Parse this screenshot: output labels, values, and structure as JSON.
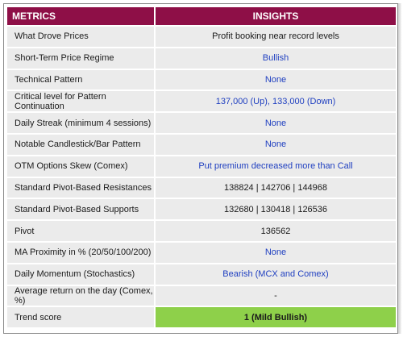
{
  "header": {
    "metrics_label": "METRICS",
    "insights_label": "INSIGHTS"
  },
  "rows": [
    {
      "metric": "What Drove Prices",
      "value": "Profit booking near record levels",
      "value_color": "black"
    },
    {
      "metric": "Short-Term Price Regime",
      "value": "Bullish",
      "value_color": "blue"
    },
    {
      "metric": "Technical Pattern",
      "value": "None",
      "value_color": "blue"
    },
    {
      "metric": "Critical level for Pattern Continuation",
      "value": "137,000 (Up), 133,000 (Down)",
      "value_color": "blue"
    },
    {
      "metric": "Daily Streak (minimum 4 sessions)",
      "value": "None",
      "value_color": "blue"
    },
    {
      "metric": "Notable Candlestick/Bar Pattern",
      "value": "None",
      "value_color": "blue"
    },
    {
      "metric": "OTM Options Skew (Comex)",
      "value": "Put premium decreased more than Call",
      "value_color": "blue"
    },
    {
      "metric": "Standard Pivot-Based Resistances",
      "value": "138824 | 142706  | 144968",
      "value_color": "black"
    },
    {
      "metric": "Standard Pivot-Based Supports",
      "value": "132680 | 130418  | 126536",
      "value_color": "black"
    },
    {
      "metric": "Pivot",
      "value": "136562",
      "value_color": "black"
    },
    {
      "metric": "MA Proximity in % (20/50/100/200)",
      "value": "None",
      "value_color": "blue"
    },
    {
      "metric": "Daily Momentum (Stochastics)",
      "value": "Bearish (MCX and Comex)",
      "value_color": "blue"
    },
    {
      "metric": "Average return on the day (Comex, %)",
      "value": "-",
      "value_color": "black"
    }
  ],
  "trend": {
    "metric": "Trend score",
    "value": "1 (Mild Bullish)",
    "highlight_color": "#8ed04a"
  },
  "colors": {
    "header_bg": "#8e0f47",
    "row_bg": "#ebebeb",
    "blue_text": "#1f3fc0"
  }
}
